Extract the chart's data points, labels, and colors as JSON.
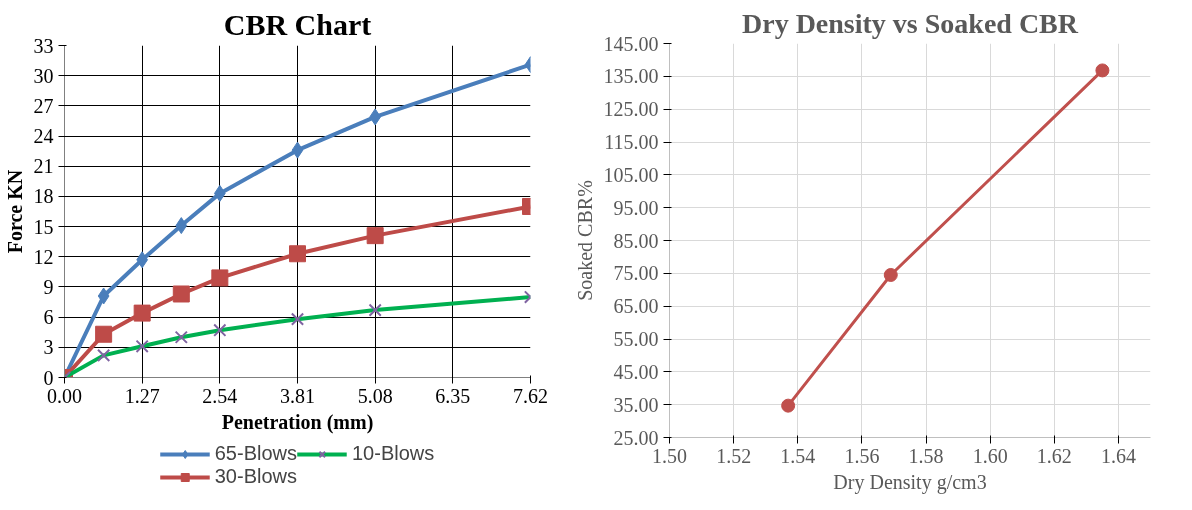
{
  "chart_data": [
    {
      "type": "line",
      "title": "CBR Chart",
      "xlabel": "Penetration (mm)",
      "ylabel": "Force KN",
      "xlim": [
        0,
        7.62
      ],
      "ylim": [
        0,
        33
      ],
      "xticks": [
        {
          "value": 0,
          "label": "0.00"
        },
        1.27,
        2.54,
        3.81,
        5.08,
        6.35,
        7.62
      ],
      "yticks": [
        0,
        3,
        6,
        9,
        12,
        15,
        18,
        21,
        24,
        27,
        30,
        33
      ],
      "grid": true,
      "legend": "bottom",
      "series": [
        {
          "name": "65-Blows",
          "color": "#4a7ebb",
          "marker": "diamond",
          "x": [
            0,
            0.64,
            1.27,
            1.91,
            2.54,
            3.81,
            5.08,
            7.62
          ],
          "values": [
            0,
            8.1,
            11.7,
            15.1,
            18.3,
            22.6,
            25.9,
            31.1
          ]
        },
        {
          "name": "30-Blows",
          "color": "#be4b48",
          "marker": "square",
          "x": [
            0,
            0.64,
            1.27,
            1.91,
            2.54,
            3.81,
            5.08,
            7.62
          ],
          "values": [
            0,
            4.3,
            6.4,
            8.3,
            9.9,
            12.3,
            14.1,
            17.0
          ]
        },
        {
          "name": "10-Blows",
          "color": "#00b050",
          "marker": "cross",
          "x": [
            0,
            0.64,
            1.27,
            1.91,
            2.54,
            3.81,
            5.08,
            7.62
          ],
          "values": [
            0,
            2.2,
            3.1,
            4.0,
            4.7,
            5.8,
            6.7,
            8.0
          ]
        }
      ]
    },
    {
      "type": "line",
      "title": "Dry Density vs Soaked CBR",
      "xlabel": "Dry Density g/cm3",
      "ylabel": "Soaked CBR%",
      "xlim": [
        1.5,
        1.65
      ],
      "ylim": [
        25,
        145
      ],
      "xticks": [
        {
          "value": 1.5,
          "label": "1.50"
        },
        1.52,
        1.54,
        1.56,
        1.58,
        {
          "value": 1.6,
          "label": "1.60"
        },
        1.62,
        1.64
      ],
      "yticks": [
        {
          "value": 25,
          "label": "25.00"
        },
        {
          "value": 35,
          "label": "35.00"
        },
        {
          "value": 45,
          "label": "45.00"
        },
        {
          "value": 55,
          "label": "55.00"
        },
        {
          "value": 65,
          "label": "65.00"
        },
        {
          "value": 75,
          "label": "75.00"
        },
        {
          "value": 85,
          "label": "85.00"
        },
        {
          "value": 95,
          "label": "95.00"
        },
        {
          "value": 105,
          "label": "105.00"
        },
        {
          "value": 115,
          "label": "115.00"
        },
        {
          "value": 125,
          "label": "125.00"
        },
        {
          "value": 135,
          "label": "135.00"
        },
        {
          "value": 145,
          "label": "145.00"
        }
      ],
      "grid": true,
      "series": [
        {
          "color": "#c0504d",
          "marker": "circle",
          "x": [
            1.537,
            1.569,
            1.635
          ],
          "values": [
            34.7,
            74.5,
            136.8
          ]
        }
      ]
    }
  ]
}
